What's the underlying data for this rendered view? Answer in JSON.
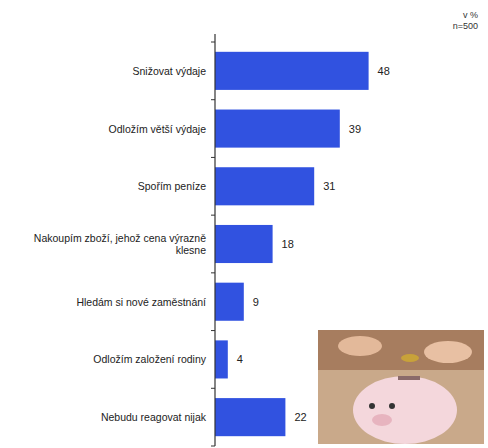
{
  "chart_data": {
    "type": "bar",
    "orientation": "horizontal",
    "annotations": [
      "v %",
      "n=500"
    ],
    "categories": [
      "Snižovat výdaje",
      "Odložím větší výdaje",
      "Spořím peníze",
      "Nakoupím zboží, jehož cena výrazně klesne",
      "Hledám si nové zaměstnání",
      "Odložím založení rodiny",
      "Nebudu reagovat nijak"
    ],
    "values": [
      48,
      39,
      31,
      18,
      9,
      4,
      22
    ],
    "color": "#3152e0",
    "xlim": [
      0,
      50
    ],
    "tick_labels": false,
    "data_labels": true,
    "grid": false
  }
}
